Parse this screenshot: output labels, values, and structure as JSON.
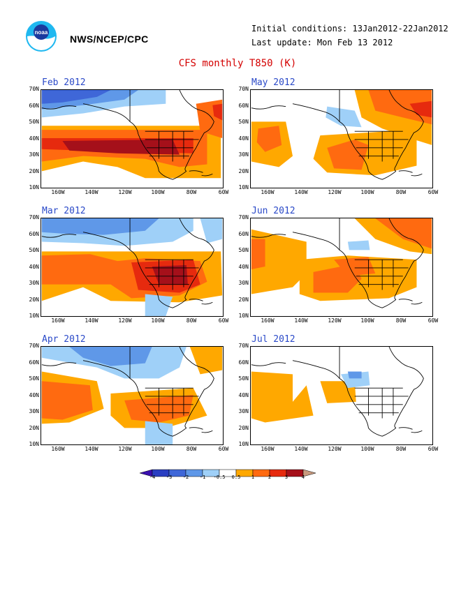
{
  "header": {
    "agency": "NWS/NCEP/CPC",
    "initial_conditions": "Initial conditions: 13Jan2012-22Jan2012",
    "last_update": "Last update: Mon Feb 13 2012",
    "title": "CFS monthly T850 (K)"
  },
  "logo": {
    "name": "noaa-logo",
    "text": "noaa"
  },
  "axes": {
    "lat_labels": [
      "70N",
      "60N",
      "50N",
      "40N",
      "30N",
      "20N",
      "10N"
    ],
    "lon_labels": [
      "160W",
      "140W",
      "120W",
      "100W",
      "80W",
      "60W"
    ]
  },
  "panels": [
    {
      "title": "Feb 2012"
    },
    {
      "title": "May 2012"
    },
    {
      "title": "Mar 2012"
    },
    {
      "title": "Jun 2012"
    },
    {
      "title": "Apr 2012"
    },
    {
      "title": "Jul 2012"
    }
  ],
  "legend": {
    "labels": [
      "-4",
      "-3",
      "-2",
      "-1",
      "-0.5",
      "0.5",
      "1",
      "2",
      "3",
      "4"
    ],
    "colors": {
      "lt_-4": "#3a0fb0",
      "-4_-3": "#2a3fc2",
      "-3_-2": "#3f67d8",
      "-2_-1": "#5f98e8",
      "-1_-0.5": "#9fd0f8",
      "neutral": "#ffffff",
      "0.5_1": "#ffa800",
      "1_2": "#ff6a10",
      "2_3": "#e62a0e",
      "3_4": "#a5101a",
      "gt_4": "#c89a7e"
    }
  }
}
